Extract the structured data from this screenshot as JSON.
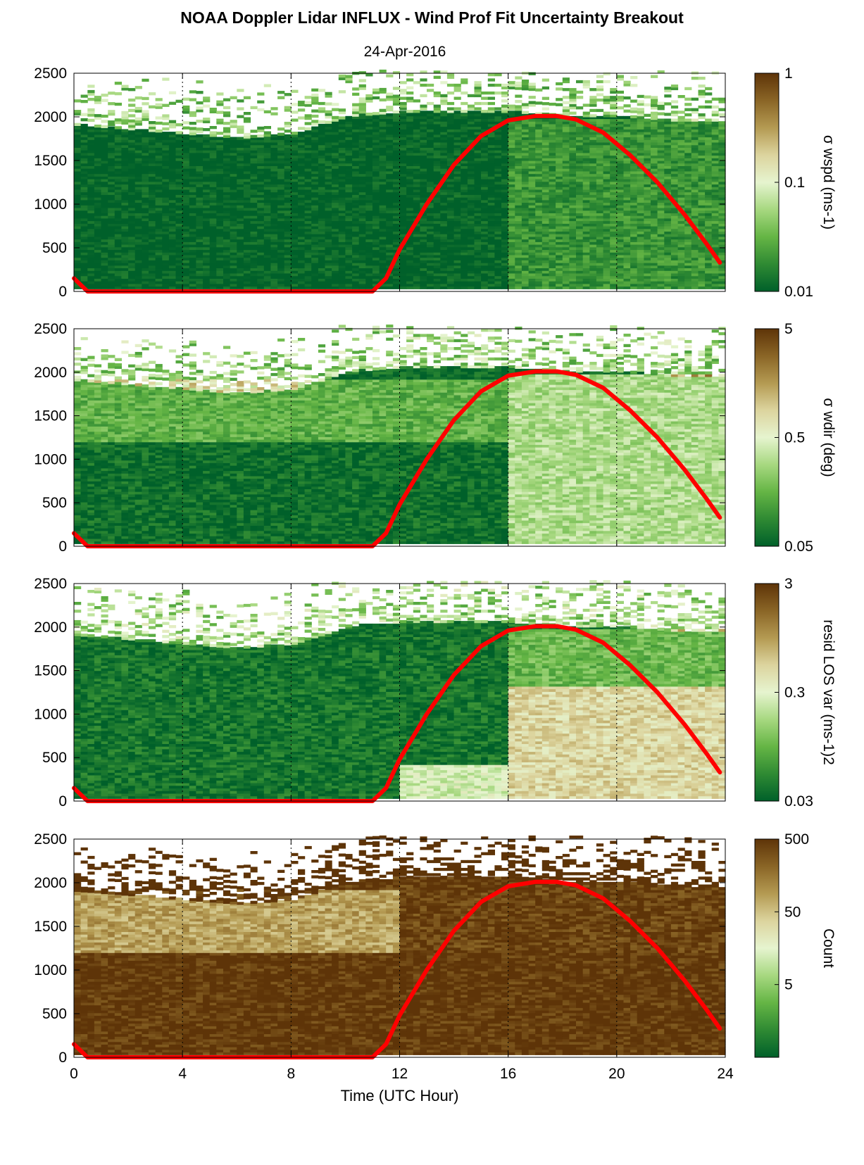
{
  "figure": {
    "title": "NOAA Doppler Lidar INFLUX - Wind Prof Fit Uncertainty Breakout",
    "date": "24-Apr-2016",
    "xlabel": "Time (UTC Hour)"
  },
  "colormap": [
    "#00602a",
    "#2f8a33",
    "#65b545",
    "#a7d880",
    "#e6f4cf",
    "#dcd49e",
    "#b49a52",
    "#8a6526",
    "#5e3408"
  ],
  "overlay_color": "#ff0000",
  "chart_data": [
    {
      "type": "heatmap",
      "name": "wspd-uncertainty",
      "x_range": [
        0,
        24
      ],
      "y_range": [
        0,
        2500
      ],
      "x_ticks": [
        0,
        4,
        8,
        12,
        16,
        20,
        24
      ],
      "y_ticks": [
        0,
        500,
        1000,
        1500,
        2000,
        2500
      ],
      "x_tick_labels": [
        "0",
        "4",
        "8",
        "12",
        "16",
        "20",
        "24"
      ],
      "y_tick_labels": [
        "0",
        "500",
        "1000",
        "1500",
        "2000",
        "2500"
      ],
      "vertical_gridlines_dotted": [
        4,
        8,
        12,
        16,
        20
      ],
      "colorbar": {
        "label": "σ wspd (ms-1)",
        "scale": "log",
        "range": [
          0.01,
          1
        ],
        "ticks": [
          0.01,
          0.1,
          1
        ],
        "tick_labels": [
          "0.01",
          "0.1",
          "1"
        ]
      },
      "top_boundary_m": [
        [
          0,
          1900
        ],
        [
          2,
          1850
        ],
        [
          4,
          1800
        ],
        [
          6,
          1750
        ],
        [
          8,
          1800
        ],
        [
          10,
          2000
        ],
        [
          12,
          2050
        ],
        [
          14,
          2050
        ],
        [
          16,
          2050
        ],
        [
          18,
          2000
        ],
        [
          20,
          2000
        ],
        [
          22,
          1950
        ],
        [
          23.8,
          1950
        ]
      ],
      "regimes": [
        {
          "x": [
            0,
            16
          ],
          "y": [
            0,
            1900
          ],
          "level": 0.01
        },
        {
          "x": [
            16,
            24
          ],
          "y": [
            0,
            1950
          ],
          "level": 0.02
        }
      ]
    },
    {
      "type": "heatmap",
      "name": "wdir-uncertainty",
      "x_range": [
        0,
        24
      ],
      "y_range": [
        0,
        2500
      ],
      "x_ticks": [
        0,
        4,
        8,
        12,
        16,
        20,
        24
      ],
      "y_ticks": [
        0,
        500,
        1000,
        1500,
        2000,
        2500
      ],
      "x_tick_labels": [
        "0",
        "4",
        "8",
        "12",
        "16",
        "20",
        "24"
      ],
      "y_tick_labels": [
        "0",
        "500",
        "1000",
        "1500",
        "2000",
        "2500"
      ],
      "vertical_gridlines_dotted": [
        4,
        8,
        12,
        16,
        20
      ],
      "colorbar": {
        "label": "σ wdir (deg)",
        "scale": "log",
        "range": [
          0.05,
          5
        ],
        "ticks": [
          0.05,
          0.5,
          5
        ],
        "tick_labels": [
          "0.05",
          "0.5",
          "5"
        ]
      },
      "top_boundary_m": [
        [
          0,
          1900
        ],
        [
          2,
          1850
        ],
        [
          4,
          1800
        ],
        [
          6,
          1750
        ],
        [
          8,
          1800
        ],
        [
          10,
          2000
        ],
        [
          12,
          2050
        ],
        [
          14,
          2050
        ],
        [
          16,
          2050
        ],
        [
          18,
          2000
        ],
        [
          20,
          2000
        ],
        [
          22,
          1950
        ],
        [
          23.8,
          1950
        ]
      ],
      "regimes": [
        {
          "x": [
            0,
            16
          ],
          "y": [
            0,
            1200
          ],
          "level": 0.06
        },
        {
          "x": [
            0,
            16
          ],
          "y": [
            1200,
            1900
          ],
          "level": 0.15
        },
        {
          "x": [
            16,
            24
          ],
          "y": [
            0,
            1950
          ],
          "level": 0.3
        }
      ]
    },
    {
      "type": "heatmap",
      "name": "resid-los-variance",
      "x_range": [
        0,
        24
      ],
      "y_range": [
        0,
        2500
      ],
      "x_ticks": [
        0,
        4,
        8,
        12,
        16,
        20,
        24
      ],
      "y_ticks": [
        0,
        500,
        1000,
        1500,
        2000,
        2500
      ],
      "x_tick_labels": [
        "0",
        "4",
        "8",
        "12",
        "16",
        "20",
        "24"
      ],
      "y_tick_labels": [
        "0",
        "500",
        "1000",
        "1500",
        "2000",
        "2500"
      ],
      "vertical_gridlines_dotted": [
        4,
        8,
        12,
        16,
        20
      ],
      "colorbar": {
        "label": "resid LOS var (ms-1)2",
        "scale": "log",
        "range": [
          0.03,
          3
        ],
        "ticks": [
          0.03,
          0.3,
          3
        ],
        "tick_labels": [
          "0.03",
          "0.3",
          "3"
        ]
      },
      "top_boundary_m": [
        [
          0,
          1900
        ],
        [
          2,
          1850
        ],
        [
          4,
          1800
        ],
        [
          6,
          1750
        ],
        [
          8,
          1800
        ],
        [
          10,
          2000
        ],
        [
          12,
          2050
        ],
        [
          14,
          2050
        ],
        [
          16,
          2050
        ],
        [
          18,
          2000
        ],
        [
          20,
          2000
        ],
        [
          22,
          1950
        ],
        [
          23.8,
          1950
        ]
      ],
      "regimes": [
        {
          "x": [
            0,
            16
          ],
          "y": [
            0,
            1900
          ],
          "level": 0.04
        },
        {
          "x": [
            12,
            16
          ],
          "y": [
            0,
            400
          ],
          "level": 0.25
        },
        {
          "x": [
            16,
            24
          ],
          "y": [
            0,
            1300
          ],
          "level": 0.5
        },
        {
          "x": [
            16,
            24
          ],
          "y": [
            1300,
            1950
          ],
          "level": 0.1
        }
      ]
    },
    {
      "type": "heatmap",
      "name": "count",
      "x_range": [
        0,
        24
      ],
      "y_range": [
        0,
        2500
      ],
      "x_ticks": [
        0,
        4,
        8,
        12,
        16,
        20,
        24
      ],
      "y_ticks": [
        0,
        500,
        1000,
        1500,
        2000,
        2500
      ],
      "x_tick_labels": [
        "0",
        "4",
        "8",
        "12",
        "16",
        "20",
        "24"
      ],
      "y_tick_labels": [
        "0",
        "500",
        "1000",
        "1500",
        "2000",
        "2500"
      ],
      "vertical_gridlines_dotted": [
        4,
        8,
        12,
        16,
        20
      ],
      "colorbar": {
        "label": "Count",
        "scale": "log",
        "range": [
          0.5,
          500
        ],
        "ticks": [
          5,
          50,
          500
        ],
        "tick_labels": [
          "5",
          "50",
          "500"
        ]
      },
      "top_boundary_m": [
        [
          0,
          1900
        ],
        [
          2,
          1850
        ],
        [
          4,
          1800
        ],
        [
          6,
          1750
        ],
        [
          8,
          1800
        ],
        [
          10,
          2000
        ],
        [
          12,
          2050
        ],
        [
          14,
          2050
        ],
        [
          16,
          2050
        ],
        [
          18,
          2000
        ],
        [
          20,
          2000
        ],
        [
          22,
          1950
        ],
        [
          23.8,
          1950
        ]
      ],
      "regimes": [
        {
          "x": [
            0,
            24
          ],
          "y": [
            0,
            1200
          ],
          "level": 480
        },
        {
          "x": [
            0,
            12
          ],
          "y": [
            1200,
            1900
          ],
          "level": 80
        },
        {
          "x": [
            12,
            24
          ],
          "y": [
            1200,
            1950
          ],
          "level": 400
        }
      ]
    }
  ],
  "boundary_layer_height": {
    "type": "line",
    "x": [
      0,
      0.5,
      11,
      11.5,
      12,
      13,
      14,
      15,
      16,
      17,
      17.8,
      18.5,
      19.5,
      20.5,
      21.5,
      22.5,
      23.3,
      23.8
    ],
    "y": [
      150,
      0,
      0,
      150,
      480,
      1000,
      1450,
      1780,
      1960,
      2010,
      2010,
      1970,
      1820,
      1560,
      1250,
      880,
      550,
      330
    ]
  }
}
